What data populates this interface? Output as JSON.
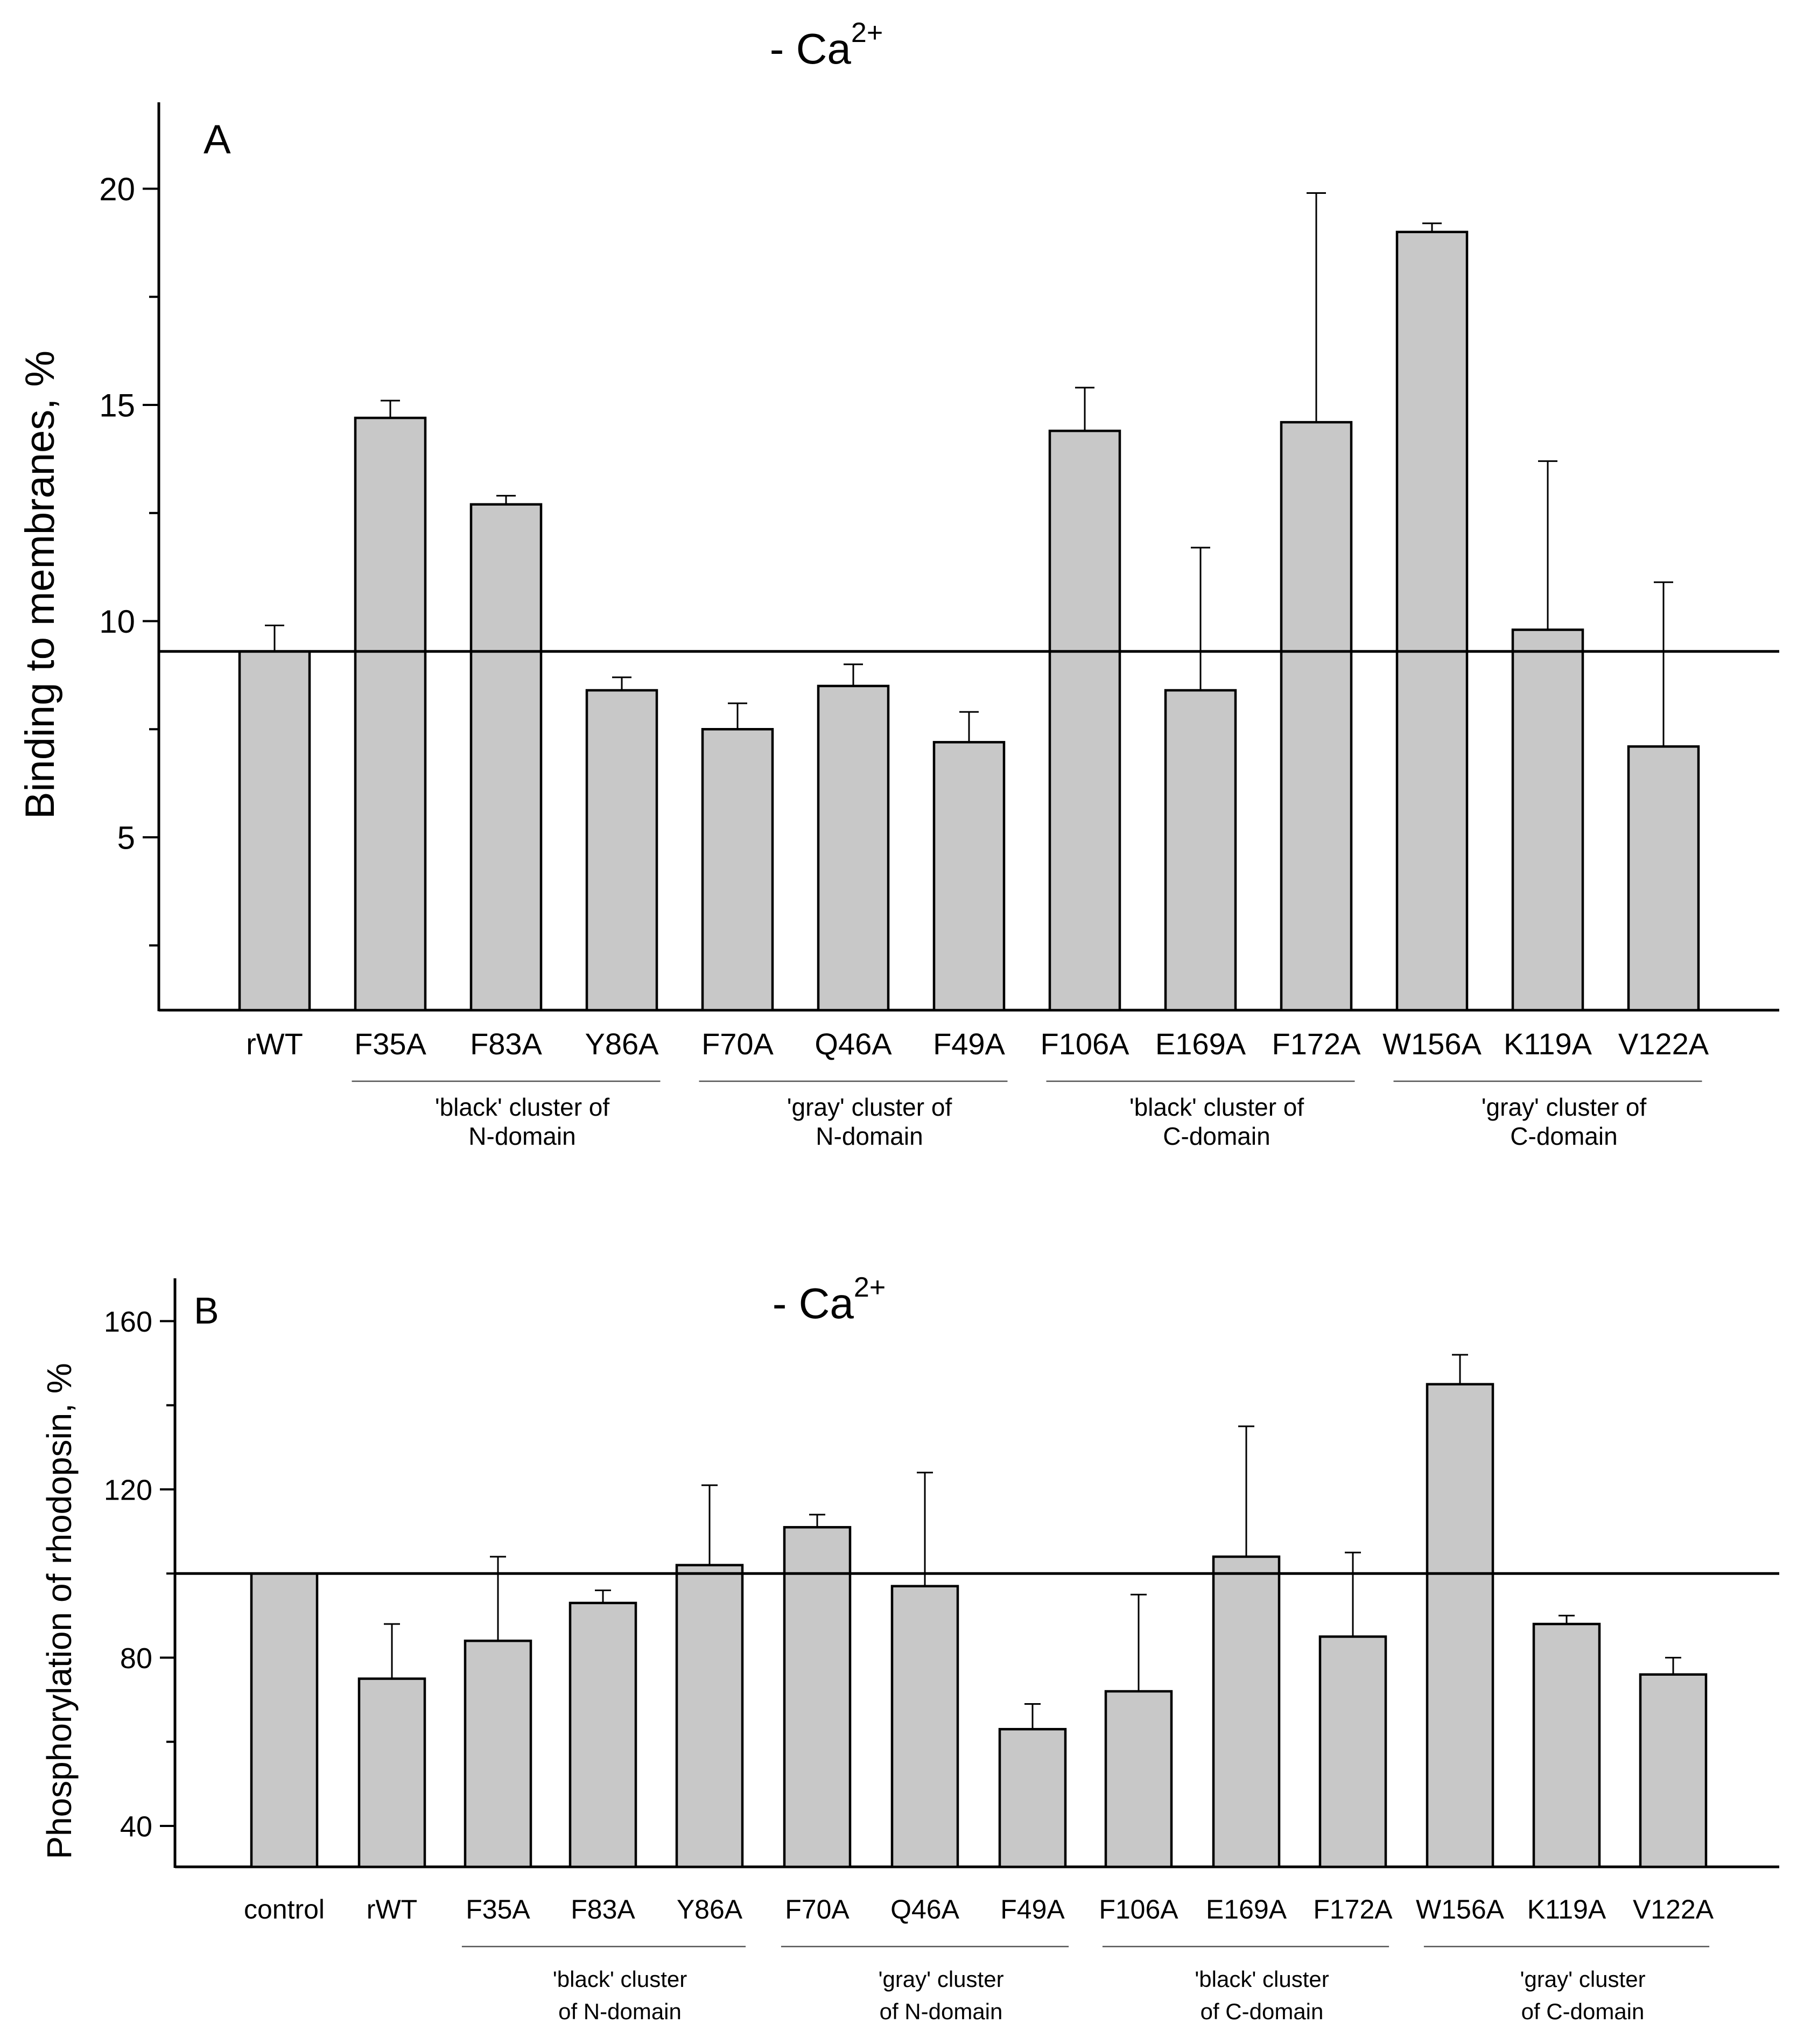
{
  "chart_data": [
    {
      "panel_label": "A",
      "type": "bar",
      "title": "- Ca",
      "title_superscript": "2+",
      "ylabel": "Binding to membranes, %",
      "xlabel": "",
      "ylim": [
        1,
        22
      ],
      "yticks_labeled": [
        5,
        10,
        15,
        20
      ],
      "yticks_minor": [
        2.5,
        7.5,
        12.5,
        17.5
      ],
      "reference_line": 9.3,
      "grid": false,
      "categories": [
        "rWT",
        "F35A",
        "F83A",
        "Y86A",
        "F70A",
        "Q46A",
        "F49A",
        "F106A",
        "E169A",
        "F172A",
        "W156A",
        "K119A",
        "V122A"
      ],
      "values": [
        9.3,
        14.7,
        12.7,
        8.4,
        7.5,
        8.5,
        7.2,
        14.4,
        8.4,
        14.6,
        19.0,
        9.8,
        7.1
      ],
      "errors": [
        0.6,
        0.4,
        0.2,
        0.3,
        0.6,
        0.5,
        0.7,
        1.0,
        3.3,
        5.3,
        0.2,
        3.9,
        3.8
      ],
      "groups": [
        {
          "line1": "'black' cluster of",
          "line2": "N-domain",
          "start": 1,
          "end": 3
        },
        {
          "line1": "'gray' cluster of",
          "line2": "N-domain",
          "start": 4,
          "end": 6
        },
        {
          "line1": "'black' cluster of",
          "line2": "C-domain",
          "start": 7,
          "end": 9
        },
        {
          "line1": "'gray' cluster of",
          "line2": "C-domain",
          "start": 10,
          "end": 12
        }
      ]
    },
    {
      "panel_label": "B",
      "type": "bar",
      "title": "- Ca",
      "title_superscript": "2+",
      "ylabel": "Phosphorylation of rhodopsin, %",
      "xlabel": "",
      "ylim": [
        30,
        170
      ],
      "yticks_labeled": [
        40,
        80,
        120,
        160
      ],
      "yticks_minor": [
        60,
        100,
        140
      ],
      "reference_line": 100,
      "grid": false,
      "categories": [
        "control",
        "rWT",
        "F35A",
        "F83A",
        "Y86A",
        "F70A",
        "Q46A",
        "F49A",
        "F106A",
        "E169A",
        "F172A",
        "W156A",
        "K119A",
        "V122A"
      ],
      "values": [
        100,
        75,
        84,
        93,
        102,
        111,
        97,
        63,
        72,
        104,
        85,
        145,
        88,
        76
      ],
      "errors": [
        0,
        13,
        20,
        3,
        19,
        3,
        27,
        6,
        23,
        31,
        20,
        7,
        2,
        4
      ],
      "groups": [
        {
          "line1": "'black' cluster",
          "line2": "of N-domain",
          "start": 2,
          "end": 4
        },
        {
          "line1": "'gray' cluster",
          "line2": "of N-domain",
          "start": 5,
          "end": 7
        },
        {
          "line1": "'black' cluster",
          "line2": "of C-domain",
          "start": 8,
          "end": 10
        },
        {
          "line1": "'gray' cluster",
          "line2": "of C-domain",
          "start": 11,
          "end": 13
        }
      ]
    }
  ]
}
